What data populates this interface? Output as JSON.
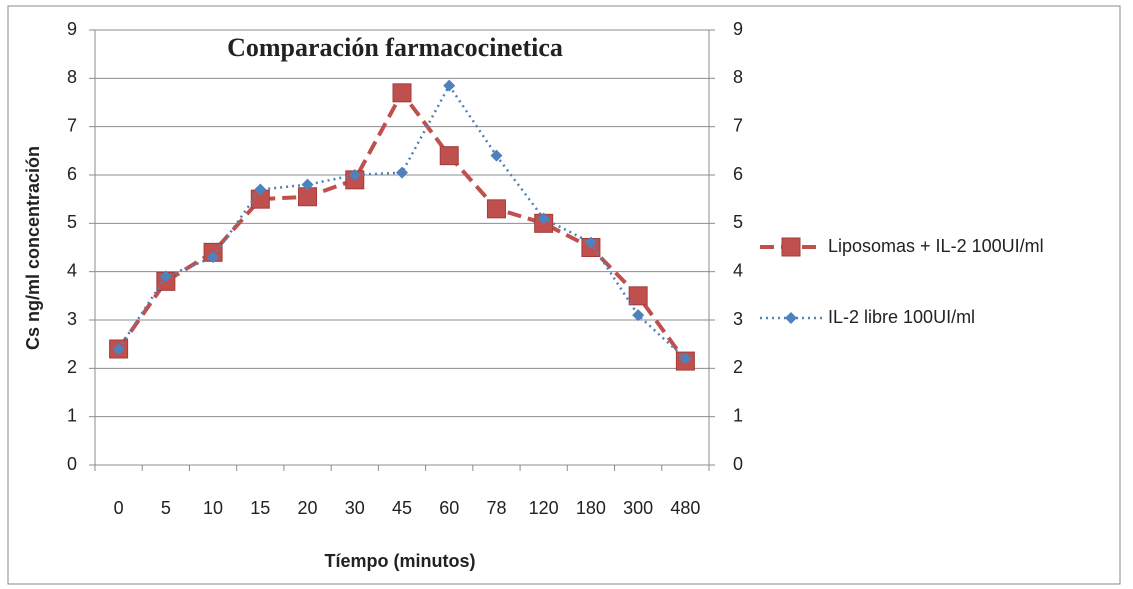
{
  "chart_data": {
    "type": "line",
    "title": "Comparación farmacocinetica",
    "y_label": "Cs ng/ml concentración",
    "x_label": "Tíempo  (minutos)",
    "categories": [
      "0",
      "5",
      "10",
      "15",
      "20",
      "30",
      "45",
      "60",
      "78",
      "120",
      "180",
      "300",
      "480"
    ],
    "series": [
      {
        "name": "Liposomas + IL-2 100UI/ml",
        "color": "#c0504d",
        "values": [
          2.4,
          3.8,
          4.4,
          5.5,
          5.55,
          5.9,
          7.7,
          6.4,
          5.3,
          5.0,
          4.5,
          3.5,
          2.15
        ]
      },
      {
        "name": "IL-2 libre 100UI/ml",
        "color": "#4f81bd",
        "axis": "y2",
        "values": [
          2.4,
          3.9,
          4.3,
          5.7,
          5.8,
          6.0,
          6.05,
          7.85,
          6.4,
          5.1,
          4.6,
          3.1,
          2.2
        ]
      }
    ],
    "ylim": [
      0,
      9
    ],
    "yticks": [
      0,
      1,
      2,
      3,
      4,
      5,
      6,
      7,
      8,
      9
    ],
    "y2lim": [
      0,
      9
    ],
    "y2ticks": [
      0,
      1,
      2,
      3,
      4,
      5,
      6,
      7,
      8,
      9
    ],
    "grid": true,
    "legend": "right"
  }
}
